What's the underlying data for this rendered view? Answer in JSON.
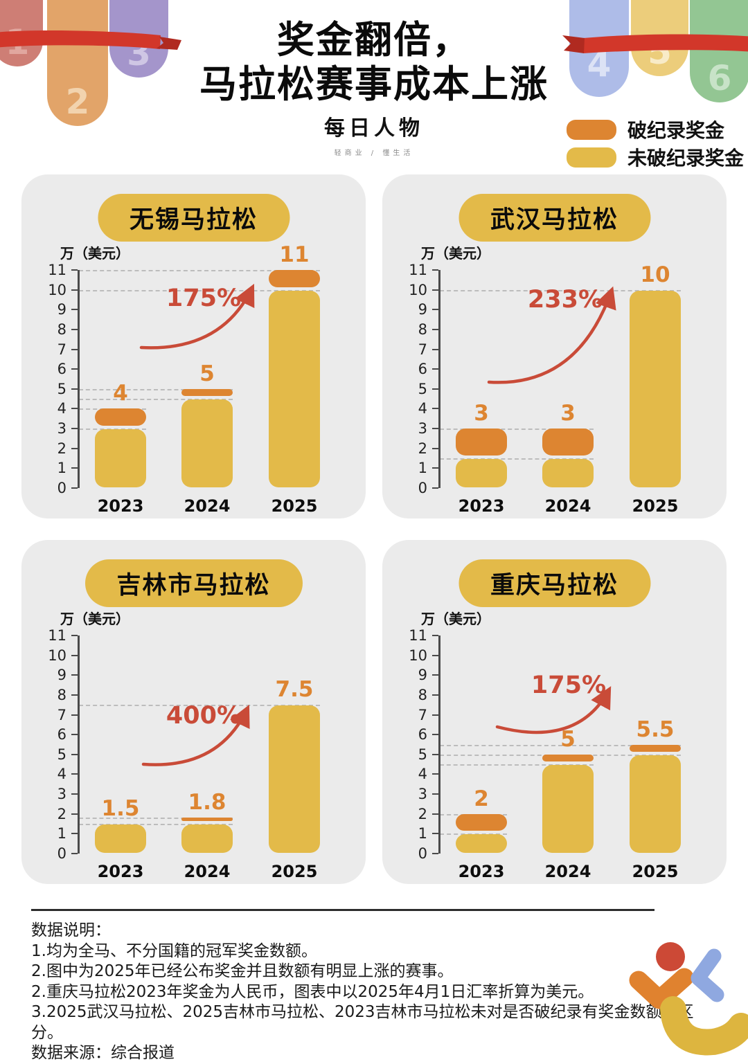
{
  "header": {
    "title_line1": "奖金翻倍，",
    "title_line2": "马拉松赛事成本上涨",
    "logo": "每日人物",
    "tagline": "轻商业 / 懂生活",
    "decor_left_numbers": [
      "1",
      "2",
      "3"
    ],
    "decor_right_numbers": [
      "4",
      "5",
      "6"
    ]
  },
  "legend": {
    "items": [
      {
        "label": "破纪录奖金",
        "color": "#dd8531"
      },
      {
        "label": "未破纪录奖金",
        "color": "#e3ba49"
      }
    ]
  },
  "colors": {
    "record_break": "#dd8531",
    "no_record": "#e3ba49",
    "growth_red": "#c94b38",
    "panel_bg": "#ebebeb"
  },
  "chart_data": [
    {
      "type": "bar",
      "title": "无锡马拉松",
      "ylabel": "万（美元）",
      "ylim": [
        0,
        11
      ],
      "grid": "dashed-partial",
      "categories": [
        "2023",
        "2024",
        "2025"
      ],
      "series": [
        {
          "name": "未破纪录奖金",
          "values": [
            3,
            4.5,
            10
          ]
        },
        {
          "name": "破纪录奖金",
          "values": [
            1,
            0.5,
            1
          ]
        }
      ],
      "totals": [
        4,
        5,
        11
      ],
      "bar_labels": [
        "4",
        "5",
        "11"
      ],
      "growth_label": "175%",
      "gridlines": [
        {
          "value": 3,
          "bar": 0
        },
        {
          "value": 4,
          "bar": 0
        },
        {
          "value": 4.5,
          "bar": 1
        },
        {
          "value": 5,
          "bar": 1
        },
        {
          "value": 10,
          "bar": 2
        },
        {
          "value": 11,
          "bar": 2
        }
      ]
    },
    {
      "type": "bar",
      "title": "武汉马拉松",
      "ylabel": "万（美元）",
      "ylim": [
        0,
        11
      ],
      "grid": "dashed-partial",
      "categories": [
        "2023",
        "2024",
        "2025"
      ],
      "series": [
        {
          "name": "未破纪录奖金",
          "values": [
            1.5,
            1.5,
            10
          ]
        },
        {
          "name": "破纪录奖金",
          "values": [
            1.5,
            1.5,
            0
          ]
        }
      ],
      "totals": [
        3,
        3,
        10
      ],
      "bar_labels": [
        "3",
        "3",
        "10"
      ],
      "growth_label": "233%",
      "gridlines": [
        {
          "value": 1.5,
          "bar": 1
        },
        {
          "value": 3,
          "bar": 1
        },
        {
          "value": 10,
          "bar": 2
        }
      ]
    },
    {
      "type": "bar",
      "title": "吉林市马拉松",
      "ylabel": "万（美元）",
      "ylim": [
        0,
        11
      ],
      "grid": "dashed-partial",
      "categories": [
        "2023",
        "2024",
        "2025"
      ],
      "series": [
        {
          "name": "未破纪录奖金",
          "values": [
            1.5,
            1.5,
            7.5
          ]
        },
        {
          "name": "破纪录奖金",
          "values": [
            0,
            0.3,
            0
          ]
        }
      ],
      "totals": [
        1.5,
        1.8,
        7.5
      ],
      "bar_labels": [
        "1.5",
        "1.8",
        "7.5"
      ],
      "growth_label": "400%",
      "gridlines": [
        {
          "value": 1.5,
          "bar": 1
        },
        {
          "value": 1.8,
          "bar": 1
        },
        {
          "value": 7.5,
          "bar": 2
        }
      ]
    },
    {
      "type": "bar",
      "title": "重庆马拉松",
      "ylabel": "万（美元）",
      "ylim": [
        0,
        11
      ],
      "grid": "dashed-partial",
      "categories": [
        "2023",
        "2024",
        "2025"
      ],
      "series": [
        {
          "name": "未破纪录奖金",
          "values": [
            1,
            4.5,
            5
          ]
        },
        {
          "name": "破纪录奖金",
          "values": [
            1,
            0.5,
            0.5
          ]
        }
      ],
      "totals": [
        2,
        5,
        5.5
      ],
      "bar_labels": [
        "2",
        "5",
        "5.5"
      ],
      "growth_label": "175%",
      "gridlines": [
        {
          "value": 1,
          "bar": 0
        },
        {
          "value": 2,
          "bar": 0
        },
        {
          "value": 4.5,
          "bar": 1
        },
        {
          "value": 5,
          "bar": 2
        },
        {
          "value": 5.5,
          "bar": 2
        }
      ]
    }
  ],
  "footer": {
    "lines": [
      "数据说明：",
      "1.均为全马、不分国籍的冠军奖金数额。",
      "2.图中为2025年已经公布奖金并且数额有明显上涨的赛事。",
      "2.重庆马拉松2023年奖金为人民币，图表中以2025年4月1日汇率折算为美元。",
      "3.2025武汉马拉松、2025吉林市马拉松、2023吉林市马拉松未对是否破纪录有奖金数额的区分。",
      "数据来源：综合报道"
    ]
  }
}
